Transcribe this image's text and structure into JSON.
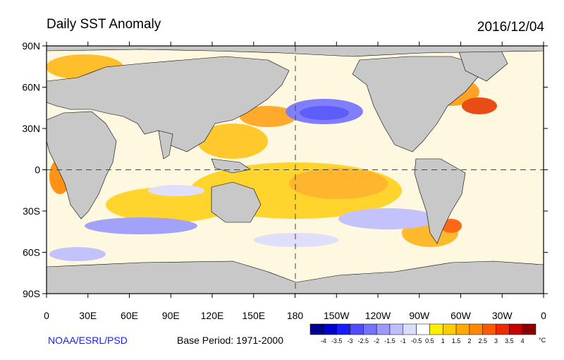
{
  "title": "Daily SST Anomaly",
  "date": "2016/12/04",
  "credit": "NOAA/ESRL/PSD",
  "base_period": "Base Period: 1971-2000",
  "colorbar": {
    "unit": "°C",
    "labels": [
      "-4",
      "-3.5",
      "-3",
      "-2.5",
      "-2",
      "-1.5",
      "-1",
      "-0.5",
      "0.5",
      "1",
      "1.5",
      "2",
      "2.5",
      "3",
      "3.5",
      "4"
    ],
    "colors": [
      "#00008f",
      "#0000cd",
      "#1a1aff",
      "#4d4dff",
      "#7373ff",
      "#9999ff",
      "#bdbdff",
      "#dcdcff",
      "#ffffff",
      "#ffee00",
      "#ffcc00",
      "#ffaa00",
      "#ff8800",
      "#ff5a00",
      "#ee2a00",
      "#c80000",
      "#8b0000"
    ]
  },
  "map": {
    "y_labels": [
      "90N",
      "60N",
      "30N",
      "0",
      "30S",
      "60S",
      "90S"
    ],
    "x_labels": [
      "0",
      "30E",
      "60E",
      "90E",
      "120E",
      "150E",
      "180",
      "150W",
      "120W",
      "90W",
      "60W",
      "30W",
      "0"
    ],
    "land_color": "#c8c8c8"
  }
}
